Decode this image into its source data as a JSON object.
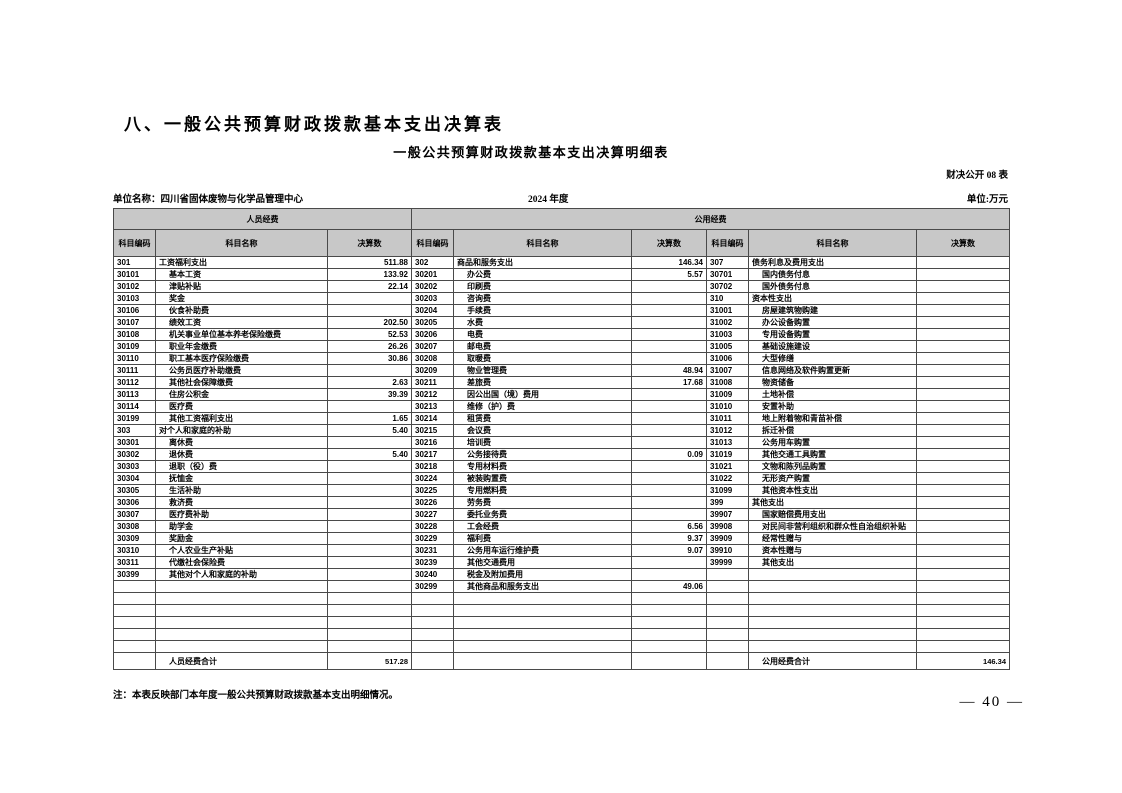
{
  "colors": {
    "header_bg": "#c8c8c8",
    "border": "#4a4a4a"
  },
  "page": {
    "title": "八、一般公共预算财政拨款基本支出决算表",
    "subtitle": "一般公共预算财政拨款基本支出决算明细表",
    "doc_label": "财决公开 08 表",
    "unit_name": "单位名称：四川省固体废物与化学品管理中心",
    "year": "2024 年度",
    "currency_unit": "单位:万元",
    "note": "注：本表反映部门本年度一般公共预算财政拨款基本支出明细情况。",
    "page_number": "— 40 —"
  },
  "table": {
    "banners": {
      "personnel": "人员经费",
      "public": "公用经费"
    },
    "col_headers": {
      "code": "科目编码",
      "name": "科目名称",
      "value": "决算数"
    },
    "row_count": 33,
    "groups": [
      {
        "rows": [
          [
            "301",
            "工资福利支出",
            "511.88",
            0
          ],
          [
            "30101",
            "基本工资",
            "133.92",
            1
          ],
          [
            "30102",
            "津贴补贴",
            "22.14",
            1
          ],
          [
            "30103",
            "奖金",
            "",
            1
          ],
          [
            "30106",
            "伙食补助费",
            "",
            1
          ],
          [
            "30107",
            "绩效工资",
            "202.50",
            1
          ],
          [
            "30108",
            "机关事业单位基本养老保险缴费",
            "52.53",
            1
          ],
          [
            "30109",
            "职业年金缴费",
            "26.26",
            1
          ],
          [
            "30110",
            "职工基本医疗保险缴费",
            "30.86",
            1
          ],
          [
            "30111",
            "公务员医疗补助缴费",
            "",
            1
          ],
          [
            "30112",
            "其他社会保障缴费",
            "2.63",
            1
          ],
          [
            "30113",
            "住房公积金",
            "39.39",
            1
          ],
          [
            "30114",
            "医疗费",
            "",
            1
          ],
          [
            "30199",
            "其他工资福利支出",
            "1.65",
            1
          ],
          [
            "303",
            "对个人和家庭的补助",
            "5.40",
            0
          ],
          [
            "30301",
            "离休费",
            "",
            1
          ],
          [
            "30302",
            "退休费",
            "5.40",
            1
          ],
          [
            "30303",
            "退职（役）费",
            "",
            1
          ],
          [
            "30304",
            "抚恤金",
            "",
            1
          ],
          [
            "30305",
            "生活补助",
            "",
            1
          ],
          [
            "30306",
            "救济费",
            "",
            1
          ],
          [
            "30307",
            "医疗费补助",
            "",
            1
          ],
          [
            "30308",
            "助学金",
            "",
            1
          ],
          [
            "30309",
            "奖励金",
            "",
            1
          ],
          [
            "30310",
            "个人农业生产补贴",
            "",
            1
          ],
          [
            "30311",
            "代缴社会保险费",
            "",
            1
          ],
          [
            "30399",
            "其他对个人和家庭的补助",
            "",
            1
          ]
        ]
      },
      {
        "rows": [
          [
            "302",
            "商品和服务支出",
            "146.34",
            0
          ],
          [
            "30201",
            "办公费",
            "5.57",
            1
          ],
          [
            "30202",
            "印刷费",
            "",
            1
          ],
          [
            "30203",
            "咨询费",
            "",
            1
          ],
          [
            "30204",
            "手续费",
            "",
            1
          ],
          [
            "30205",
            "水费",
            "",
            1
          ],
          [
            "30206",
            "电费",
            "",
            1
          ],
          [
            "30207",
            "邮电费",
            "",
            1
          ],
          [
            "30208",
            "取暖费",
            "",
            1
          ],
          [
            "30209",
            "物业管理费",
            "48.94",
            1
          ],
          [
            "30211",
            "差旅费",
            "17.68",
            1
          ],
          [
            "30212",
            "因公出国（境）费用",
            "",
            1
          ],
          [
            "30213",
            "维修（护）费",
            "",
            1
          ],
          [
            "30214",
            "租赁费",
            "",
            1
          ],
          [
            "30215",
            "会议费",
            "",
            1
          ],
          [
            "30216",
            "培训费",
            "",
            1
          ],
          [
            "30217",
            "公务接待费",
            "0.09",
            1
          ],
          [
            "30218",
            "专用材料费",
            "",
            1
          ],
          [
            "30224",
            "被装购置费",
            "",
            1
          ],
          [
            "30225",
            "专用燃料费",
            "",
            1
          ],
          [
            "30226",
            "劳务费",
            "",
            1
          ],
          [
            "30227",
            "委托业务费",
            "",
            1
          ],
          [
            "30228",
            "工会经费",
            "6.56",
            1
          ],
          [
            "30229",
            "福利费",
            "9.37",
            1
          ],
          [
            "30231",
            "公务用车运行维护费",
            "9.07",
            1
          ],
          [
            "30239",
            "其他交通费用",
            "",
            1
          ],
          [
            "30240",
            "税金及附加费用",
            "",
            1
          ],
          [
            "30299",
            "其他商品和服务支出",
            "49.06",
            1
          ]
        ]
      },
      {
        "rows": [
          [
            "307",
            "债务利息及费用支出",
            "",
            0
          ],
          [
            "30701",
            "国内债务付息",
            "",
            1
          ],
          [
            "30702",
            "国外债务付息",
            "",
            1
          ],
          [
            "310",
            "资本性支出",
            "",
            0
          ],
          [
            "31001",
            "房屋建筑物购建",
            "",
            1
          ],
          [
            "31002",
            "办公设备购置",
            "",
            1
          ],
          [
            "31003",
            "专用设备购置",
            "",
            1
          ],
          [
            "31005",
            "基础设施建设",
            "",
            1
          ],
          [
            "31006",
            "大型修缮",
            "",
            1
          ],
          [
            "31007",
            "信息网络及软件购置更新",
            "",
            1
          ],
          [
            "31008",
            "物资储备",
            "",
            1
          ],
          [
            "31009",
            "土地补偿",
            "",
            1
          ],
          [
            "31010",
            "安置补助",
            "",
            1
          ],
          [
            "31011",
            "地上附着物和青苗补偿",
            "",
            1
          ],
          [
            "31012",
            "拆迁补偿",
            "",
            1
          ],
          [
            "31013",
            "公务用车购置",
            "",
            1
          ],
          [
            "31019",
            "其他交通工具购置",
            "",
            1
          ],
          [
            "31021",
            "文物和陈列品购置",
            "",
            1
          ],
          [
            "31022",
            "无形资产购置",
            "",
            1
          ],
          [
            "31099",
            "其他资本性支出",
            "",
            1
          ],
          [
            "399",
            "其他支出",
            "",
            0
          ],
          [
            "39907",
            "国家赔偿费用支出",
            "",
            1
          ],
          [
            "39908",
            "对民间非营利组织和群众性自治组织补贴",
            "",
            1
          ],
          [
            "39909",
            "经常性赠与",
            "",
            1
          ],
          [
            "39910",
            "资本性赠与",
            "",
            1
          ],
          [
            "39999",
            "其他支出",
            "",
            1
          ]
        ]
      }
    ],
    "totals": {
      "personnel_label": "人员经费合计",
      "personnel_value": "517.28",
      "public_label": "公用经费合计",
      "public_value": "146.34"
    }
  }
}
